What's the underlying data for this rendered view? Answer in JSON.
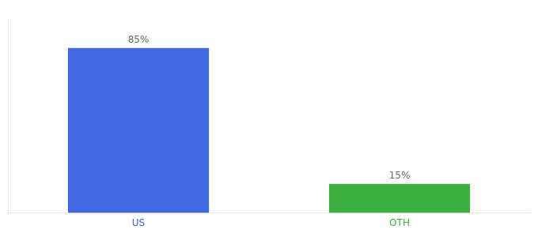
{
  "chart_data": {
    "type": "bar",
    "categories": [
      "US",
      "OTH"
    ],
    "values": [
      85,
      15
    ],
    "value_labels": [
      "85%",
      "15%"
    ],
    "colors": [
      "#4169e1",
      "#3cb043"
    ],
    "ylim": [
      0,
      100
    ],
    "grid": false,
    "data_labels": true,
    "tick_labels": "x"
  }
}
